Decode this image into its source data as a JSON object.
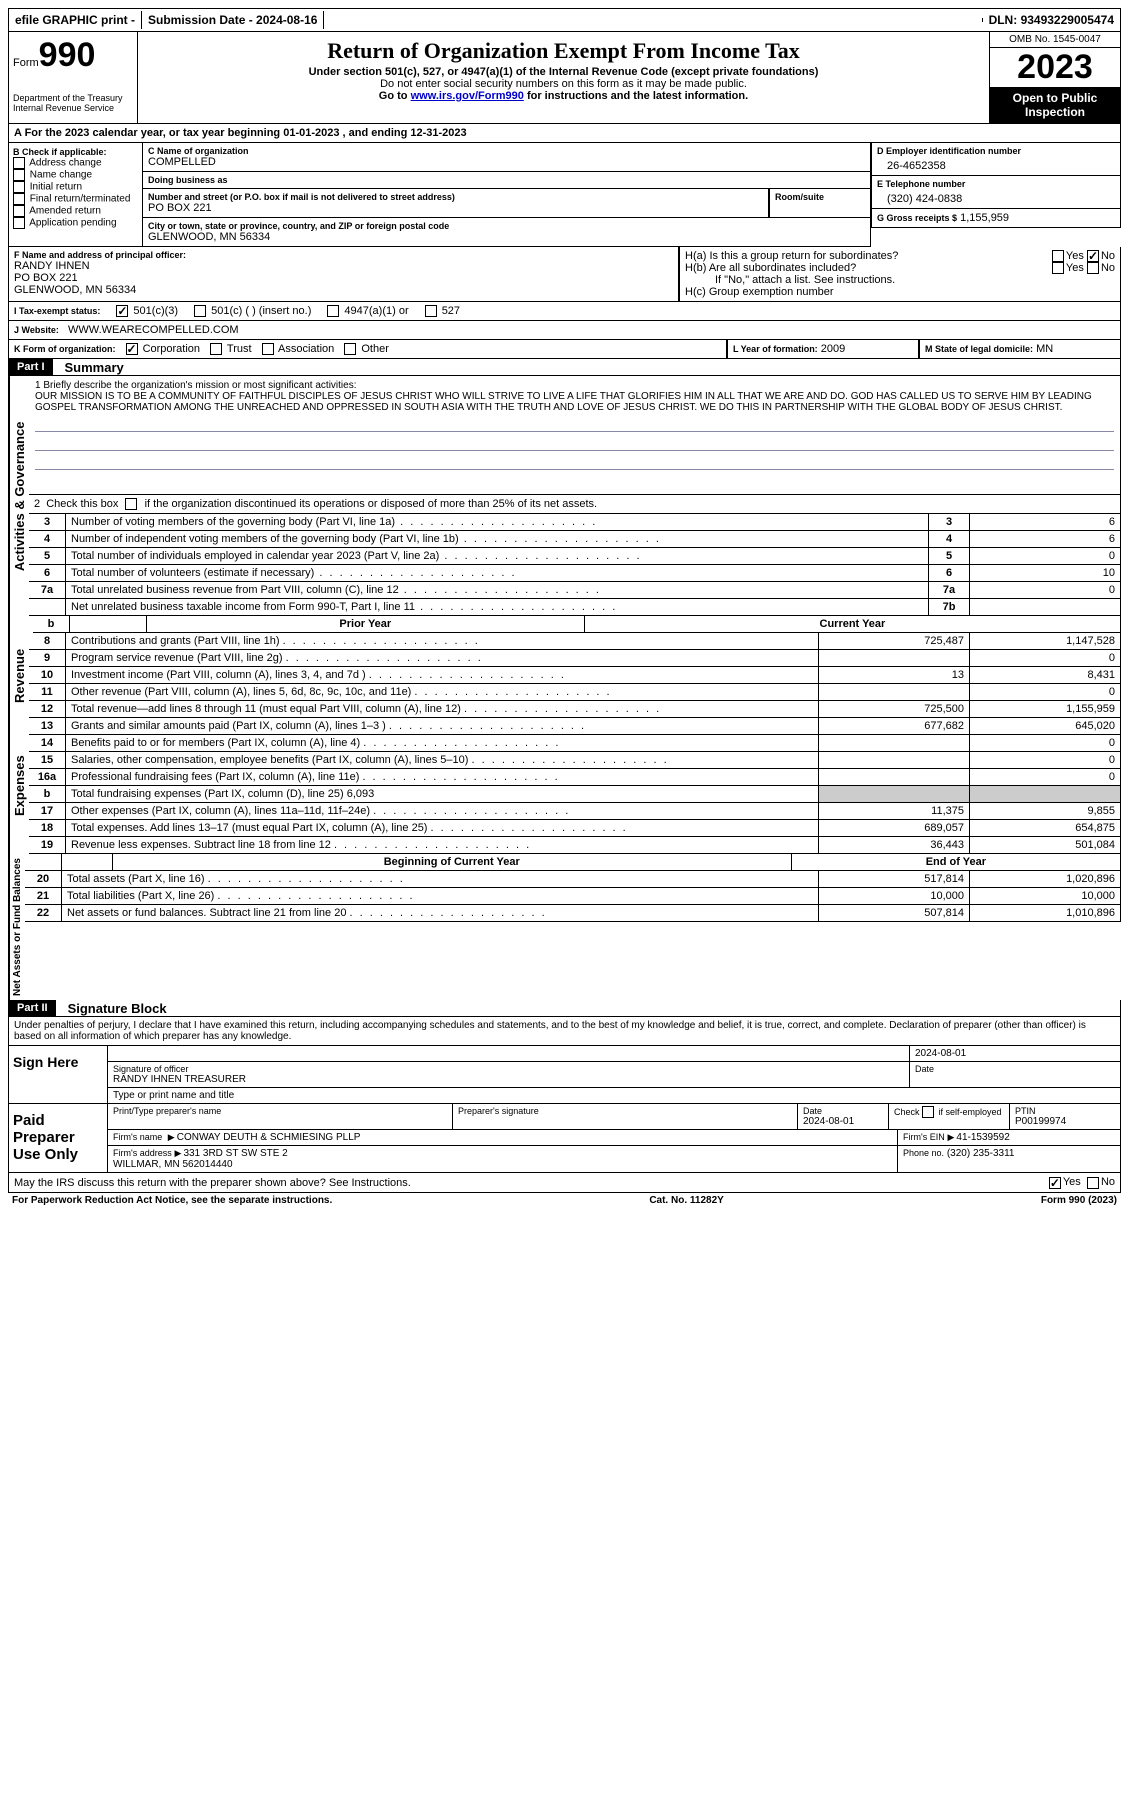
{
  "topbar": {
    "efile": "efile GRAPHIC print - ",
    "submission_label": "Submission Date - ",
    "submission_date": "2024-08-16",
    "dln_label": "DLN: ",
    "dln": "93493229005474"
  },
  "header": {
    "form_label": "Form",
    "form_num": "990",
    "title": "Return of Organization Exempt From Income Tax",
    "subtitle": "Under section 501(c), 527, or 4947(a)(1) of the Internal Revenue Code (except private foundations)",
    "note1": "Do not enter social security numbers on this form as it may be made public.",
    "note2_pre": "Go to ",
    "note2_link": "www.irs.gov/Form990",
    "note2_post": " for instructions and the latest information.",
    "dept": "Department of the Treasury\nInternal Revenue Service",
    "omb": "OMB No. 1545-0047",
    "year": "2023",
    "inspection": "Open to Public Inspection"
  },
  "section_a": {
    "text_pre": "A For the 2023 calendar year, or tax year beginning ",
    "begin": "01-01-2023",
    "mid": " , and ending ",
    "end": "12-31-2023"
  },
  "block_b": {
    "label": "B Check if applicable:",
    "items": [
      "Address change",
      "Name change",
      "Initial return",
      "Final return/terminated",
      "Amended return",
      "Application pending"
    ]
  },
  "block_c": {
    "name_label": "C Name of organization",
    "name": "COMPELLED",
    "dba_label": "Doing business as",
    "dba": "",
    "street_label": "Number and street (or P.O. box if mail is not delivered to street address)",
    "street": "PO BOX 221",
    "room_label": "Room/suite",
    "room": "",
    "city_label": "City or town, state or province, country, and ZIP or foreign postal code",
    "city": "GLENWOOD, MN  56334"
  },
  "block_d": {
    "label": "D Employer identification number",
    "ein": "26-4652358"
  },
  "block_e": {
    "label": "E Telephone number",
    "phone": "(320) 424-0838"
  },
  "block_g": {
    "label": "G Gross receipts $",
    "amount": "1,155,959"
  },
  "block_f": {
    "label": "F Name and address of principal officer:",
    "name": "RANDY IHNEN",
    "street": "PO BOX 221",
    "city": "GLENWOOD, MN  56334"
  },
  "block_h": {
    "ha": "H(a) Is this a group return for subordinates?",
    "hb": "H(b) Are all subordinates included?",
    "hb_note": "If \"No,\" attach a list. See instructions.",
    "hc": "H(c) Group exemption number",
    "yes": "Yes",
    "no": "No"
  },
  "block_i": {
    "label": "I  Tax-exempt status:",
    "opt1": "501(c)(3)",
    "opt2": "501(c) (   ) (insert no.)",
    "opt3": "4947(a)(1) or",
    "opt4": "527"
  },
  "block_j": {
    "label": "J  Website:",
    "url": "WWW.WEARECOMPELLED.COM"
  },
  "block_k": {
    "label": "K Form of organization:",
    "opts": [
      "Corporation",
      "Trust",
      "Association",
      "Other"
    ]
  },
  "block_l": {
    "label": "L Year of formation:",
    "val": "2009"
  },
  "block_m": {
    "label": "M State of legal domicile:",
    "val": "MN"
  },
  "part1": {
    "header": "Part I",
    "title": "Summary",
    "line1_label": "1  Briefly describe the organization's mission or most significant activities:",
    "mission": "OUR MISSION IS TO BE A COMMUNITY OF FAITHFUL DISCIPLES OF JESUS CHRIST WHO WILL STRIVE TO LIVE A LIFE THAT GLORIFIES HIM IN ALL THAT WE ARE AND DO. GOD HAS CALLED US TO SERVE HIM BY LEADING GOSPEL TRANSFORMATION AMONG THE UNREACHED AND OPPRESSED IN SOUTH ASIA WITH THE TRUTH AND LOVE OF JESUS CHRIST. WE DO THIS IN PARTNERSHIP WITH THE GLOBAL BODY OF JESUS CHRIST.",
    "line2": "2  Check this box       if the organization discontinued its operations or disposed of more than 25% of its net assets.",
    "governance_label": "Activities & Governance",
    "revenue_label": "Revenue",
    "expenses_label": "Expenses",
    "netassets_label": "Net Assets or Fund Balances",
    "gov_rows": [
      {
        "n": "3",
        "desc": "Number of voting members of the governing body (Part VI, line 1a)",
        "box": "3",
        "val": "6"
      },
      {
        "n": "4",
        "desc": "Number of independent voting members of the governing body (Part VI, line 1b)",
        "box": "4",
        "val": "6"
      },
      {
        "n": "5",
        "desc": "Total number of individuals employed in calendar year 2023 (Part V, line 2a)",
        "box": "5",
        "val": "0"
      },
      {
        "n": "6",
        "desc": "Total number of volunteers (estimate if necessary)",
        "box": "6",
        "val": "10"
      },
      {
        "n": "7a",
        "desc": "Total unrelated business revenue from Part VIII, column (C), line 12",
        "box": "7a",
        "val": "0"
      },
      {
        "n": "",
        "desc": "Net unrelated business taxable income from Form 990-T, Part I, line 11",
        "box": "7b",
        "val": ""
      }
    ],
    "col_prior": "Prior Year",
    "col_current": "Current Year",
    "col_begin": "Beginning of Current Year",
    "col_end": "End of Year",
    "rev_rows": [
      {
        "n": "8",
        "desc": "Contributions and grants (Part VIII, line 1h)",
        "prior": "725,487",
        "curr": "1,147,528"
      },
      {
        "n": "9",
        "desc": "Program service revenue (Part VIII, line 2g)",
        "prior": "",
        "curr": "0"
      },
      {
        "n": "10",
        "desc": "Investment income (Part VIII, column (A), lines 3, 4, and 7d )",
        "prior": "13",
        "curr": "8,431"
      },
      {
        "n": "11",
        "desc": "Other revenue (Part VIII, column (A), lines 5, 6d, 8c, 9c, 10c, and 11e)",
        "prior": "",
        "curr": "0"
      },
      {
        "n": "12",
        "desc": "Total revenue—add lines 8 through 11 (must equal Part VIII, column (A), line 12)",
        "prior": "725,500",
        "curr": "1,155,959"
      }
    ],
    "exp_rows": [
      {
        "n": "13",
        "desc": "Grants and similar amounts paid (Part IX, column (A), lines 1–3 )",
        "prior": "677,682",
        "curr": "645,020"
      },
      {
        "n": "14",
        "desc": "Benefits paid to or for members (Part IX, column (A), line 4)",
        "prior": "",
        "curr": "0"
      },
      {
        "n": "15",
        "desc": "Salaries, other compensation, employee benefits (Part IX, column (A), lines 5–10)",
        "prior": "",
        "curr": "0"
      },
      {
        "n": "16a",
        "desc": "Professional fundraising fees (Part IX, column (A), line 11e)",
        "prior": "",
        "curr": "0"
      },
      {
        "n": "b",
        "desc": "Total fundraising expenses (Part IX, column (D), line 25) 6,093",
        "prior": "GREY",
        "curr": "GREY"
      },
      {
        "n": "17",
        "desc": "Other expenses (Part IX, column (A), lines 11a–11d, 11f–24e)",
        "prior": "11,375",
        "curr": "9,855"
      },
      {
        "n": "18",
        "desc": "Total expenses. Add lines 13–17 (must equal Part IX, column (A), line 25)",
        "prior": "689,057",
        "curr": "654,875"
      },
      {
        "n": "19",
        "desc": "Revenue less expenses. Subtract line 18 from line 12",
        "prior": "36,443",
        "curr": "501,084"
      }
    ],
    "net_rows": [
      {
        "n": "20",
        "desc": "Total assets (Part X, line 16)",
        "prior": "517,814",
        "curr": "1,020,896"
      },
      {
        "n": "21",
        "desc": "Total liabilities (Part X, line 26)",
        "prior": "10,000",
        "curr": "10,000"
      },
      {
        "n": "22",
        "desc": "Net assets or fund balances. Subtract line 21 from line 20",
        "prior": "507,814",
        "curr": "1,010,896"
      }
    ]
  },
  "part2": {
    "header": "Part II",
    "title": "Signature Block",
    "penalty": "Under penalties of perjury, I declare that I have examined this return, including accompanying schedules and statements, and to the best of my knowledge and belief, it is true, correct, and complete. Declaration of preparer (other than officer) is based on all information of which preparer has any knowledge.",
    "sign_here": "Sign Here",
    "sig_officer_label": "Signature of officer",
    "sig_date": "2024-08-01",
    "date_label": "Date",
    "officer_name": "RANDY IHNEN  TREASURER",
    "type_label": "Type or print name and title",
    "paid": "Paid Preparer Use Only",
    "prep_name_label": "Print/Type preparer's name",
    "prep_sig_label": "Preparer's signature",
    "prep_date_label": "Date",
    "prep_date": "2024-08-01",
    "check_self": "Check       if self-employed",
    "ptin_label": "PTIN",
    "ptin": "P00199974",
    "firm_name_label": "Firm's name",
    "firm_name": "CONWAY DEUTH & SCHMIESING PLLP",
    "firm_ein_label": "Firm's EIN",
    "firm_ein": "41-1539592",
    "firm_addr_label": "Firm's address",
    "firm_addr": "331 3RD ST SW STE 2\nWILLMAR, MN  562014440",
    "phone_label": "Phone no.",
    "phone": "(320) 235-3311",
    "discuss": "May the IRS discuss this return with the preparer shown above? See Instructions.",
    "paperwork": "For Paperwork Reduction Act Notice, see the separate instructions.",
    "catno": "Cat. No. 11282Y",
    "formfoot": "Form 990 (2023)"
  }
}
